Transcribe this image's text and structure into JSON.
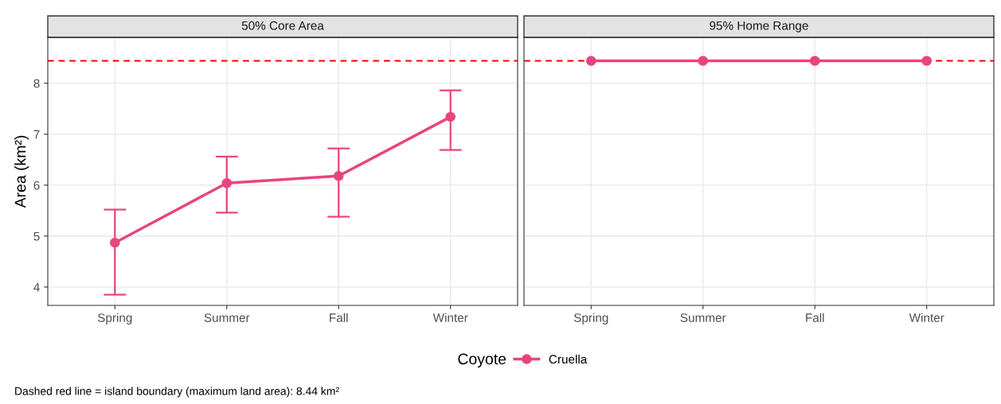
{
  "chart_data": [
    {
      "type": "line",
      "title": "50% Core Area",
      "ylabel": "Area (km²)",
      "categories": [
        "Spring",
        "Summer",
        "Fall",
        "Winter"
      ],
      "series": [
        {
          "name": "Cruella",
          "color": "#e8447f",
          "values": [
            4.87,
            6.04,
            6.18,
            7.34
          ],
          "errors": [
            [
              3.85,
              5.52
            ],
            [
              5.46,
              6.56
            ],
            [
              5.38,
              6.72
            ],
            [
              6.69,
              7.86
            ]
          ]
        }
      ],
      "ylim": [
        3.64,
        8.9
      ],
      "yticks": [
        4,
        5,
        6,
        7,
        8
      ],
      "grid": true,
      "marker": "circle",
      "line_style": "solid",
      "ref_lines": [
        {
          "axis": "y",
          "value": 8.44,
          "color": "#ff0000",
          "line_style": "dashed"
        }
      ],
      "legend": "bottom",
      "legend_title": "Coyote",
      "annotations": [
        "Dashed red line = island boundary (maximum land area): 8.44 km²"
      ]
    },
    {
      "type": "line",
      "title": "95% Home Range",
      "categories": [
        "Spring",
        "Summer",
        "Fall",
        "Winter"
      ],
      "series": [
        {
          "name": "Cruella",
          "color": "#e8447f",
          "values": [
            8.44,
            8.44,
            8.44,
            8.44
          ]
        }
      ],
      "ylim": [
        3.64,
        8.9
      ],
      "yticks": [
        4,
        5,
        6,
        7,
        8
      ],
      "grid": true,
      "marker": "circle",
      "line_style": "solid",
      "tick_labels": "x",
      "ref_lines": [
        {
          "axis": "y",
          "value": 8.44,
          "color": "#ff0000",
          "line_style": "dashed"
        }
      ]
    }
  ]
}
